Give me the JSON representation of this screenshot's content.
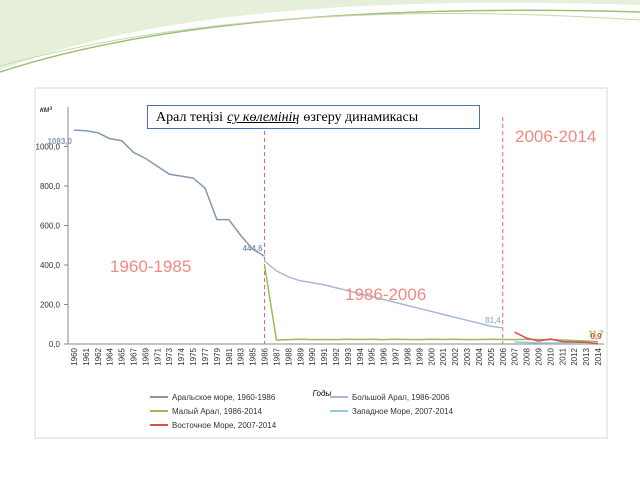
{
  "chart_data": {
    "type": "line",
    "title_parts": [
      "Арал теңізі",
      "су көлемінің",
      "өзгеру динамикасы"
    ],
    "y_unit": "км³",
    "x_label": "Годы",
    "annotations": [
      "1960-1985",
      "1986-2006",
      "2006-2014"
    ],
    "categories": [
      "1960",
      "1961",
      "1962",
      "1964",
      "1965",
      "1967",
      "1969",
      "1971",
      "1973",
      "1974",
      "1975",
      "1977",
      "1979",
      "1981",
      "1983",
      "1985",
      "1986",
      "1987",
      "1988",
      "1989",
      "1990",
      "1991",
      "1992",
      "1993",
      "1994",
      "1995",
      "1996",
      "1997",
      "1998",
      "1999",
      "2000",
      "2001",
      "2002",
      "2003",
      "2004",
      "2005",
      "2006",
      "2007",
      "2008",
      "2009",
      "2010",
      "2011",
      "2012",
      "2013",
      "2014"
    ],
    "ylim": [
      0,
      1200
    ],
    "yticks": [
      {
        "value": 0,
        "label": "0,0"
      },
      {
        "value": 200,
        "label": "200,0"
      },
      {
        "value": 400,
        "label": "400,0"
      },
      {
        "value": 600,
        "label": "600,0"
      },
      {
        "value": 800,
        "label": "800,0"
      },
      {
        "value": 1000,
        "label": "1000,0"
      }
    ],
    "grid": false,
    "series": [
      {
        "name": "Аральское море, 1960-1986",
        "color": "#8497b0",
        "values": [
          1083,
          1080,
          1070,
          1040,
          1030,
          970,
          940,
          900,
          860,
          850,
          840,
          790,
          630,
          630,
          550,
          480,
          444.6,
          null,
          null,
          null,
          null,
          null,
          null,
          null,
          null,
          null,
          null,
          null,
          null,
          null,
          null,
          null,
          null,
          null,
          null,
          null,
          null,
          null,
          null,
          null,
          null,
          null,
          null,
          null,
          null
        ],
        "value_labels": [
          "1083,0",
          null,
          null,
          null,
          null,
          null,
          null,
          null,
          null,
          null,
          null,
          null,
          null,
          null,
          null,
          null,
          "444,6",
          null,
          null,
          null,
          null,
          null,
          null,
          null,
          null,
          null,
          null,
          null,
          null,
          null,
          null,
          null,
          null,
          null,
          null,
          null,
          null,
          null,
          null,
          null,
          null,
          null,
          null,
          null,
          null
        ]
      },
      {
        "name": "Большой Арал, 1986-2006",
        "color": "#a9b8d6",
        "values": [
          null,
          null,
          null,
          null,
          null,
          null,
          null,
          null,
          null,
          null,
          null,
          null,
          null,
          null,
          null,
          null,
          420,
          370,
          340,
          320,
          310,
          300,
          285,
          270,
          255,
          240,
          225,
          210,
          195,
          180,
          165,
          150,
          135,
          120,
          105,
          90,
          81.4,
          null,
          null,
          null,
          null,
          null,
          null,
          null,
          null
        ],
        "value_labels": [
          null,
          null,
          null,
          null,
          null,
          null,
          null,
          null,
          null,
          null,
          null,
          null,
          null,
          null,
          null,
          null,
          null,
          null,
          null,
          null,
          null,
          null,
          null,
          null,
          null,
          null,
          null,
          null,
          null,
          null,
          null,
          null,
          null,
          null,
          null,
          null,
          "81,4",
          null,
          null,
          null,
          null,
          null,
          null,
          null,
          null
        ]
      },
      {
        "name": "Малый Арал, 1986-2014",
        "color": "#9bbb59",
        "values": [
          null,
          null,
          null,
          null,
          null,
          null,
          null,
          null,
          null,
          null,
          null,
          null,
          null,
          null,
          null,
          null,
          400,
          20,
          22,
          24,
          22,
          23,
          22,
          24,
          23,
          24,
          22,
          24,
          23,
          22,
          24,
          23,
          24,
          22,
          23,
          24,
          23,
          22,
          24,
          23,
          22,
          20,
          18,
          15,
          11.7
        ],
        "value_labels": [
          null,
          null,
          null,
          null,
          null,
          null,
          null,
          null,
          null,
          null,
          null,
          null,
          null,
          null,
          null,
          null,
          null,
          null,
          null,
          null,
          null,
          null,
          null,
          null,
          null,
          null,
          null,
          null,
          null,
          null,
          null,
          null,
          null,
          null,
          null,
          null,
          null,
          null,
          null,
          null,
          null,
          null,
          null,
          null,
          "11,7"
        ]
      },
      {
        "name": "Западное Море, 2007-2014",
        "color": "#93cddd",
        "values": [
          null,
          null,
          null,
          null,
          null,
          null,
          null,
          null,
          null,
          null,
          null,
          null,
          null,
          null,
          null,
          null,
          null,
          null,
          null,
          null,
          null,
          null,
          null,
          null,
          null,
          null,
          null,
          null,
          null,
          null,
          null,
          null,
          null,
          null,
          null,
          null,
          null,
          10,
          8,
          6,
          5,
          5,
          4,
          4,
          3
        ]
      },
      {
        "name": "Восточное Море, 2007-2014",
        "color": "#e04b4b",
        "values": [
          null,
          null,
          null,
          null,
          null,
          null,
          null,
          null,
          null,
          null,
          null,
          null,
          null,
          null,
          null,
          null,
          null,
          null,
          null,
          null,
          null,
          null,
          null,
          null,
          null,
          null,
          null,
          null,
          null,
          null,
          null,
          null,
          null,
          null,
          null,
          null,
          null,
          60,
          30,
          15,
          25,
          12,
          10,
          8,
          0.9
        ],
        "value_labels": [
          null,
          null,
          null,
          null,
          null,
          null,
          null,
          null,
          null,
          null,
          null,
          null,
          null,
          null,
          null,
          null,
          null,
          null,
          null,
          null,
          null,
          null,
          null,
          null,
          null,
          null,
          null,
          null,
          null,
          null,
          null,
          null,
          null,
          null,
          null,
          null,
          null,
          null,
          null,
          null,
          null,
          null,
          null,
          null,
          "0,9"
        ]
      }
    ]
  }
}
